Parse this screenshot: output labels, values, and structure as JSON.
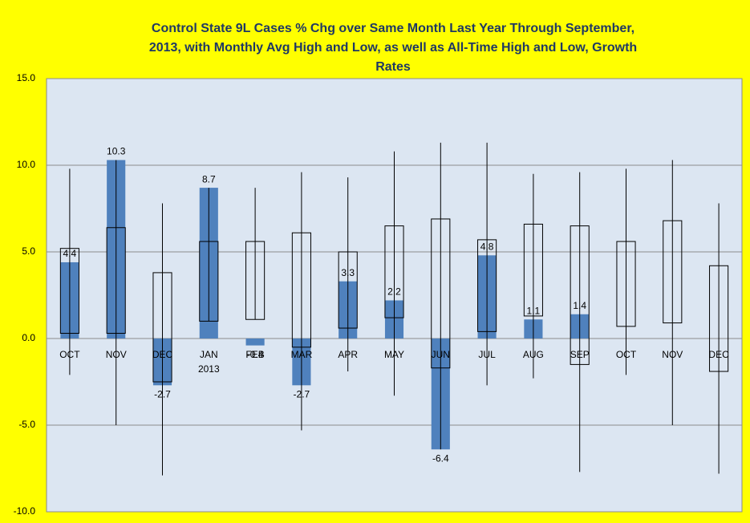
{
  "chart_data": {
    "type": "bar",
    "title": [
      "Control State 9L Cases % Chg over Same Month Last Year Through September,",
      "2013, with Monthly Avg High and Low, as well as All-Time High and Low,  Growth",
      "Rates"
    ],
    "categories": [
      "OCT",
      "NOV",
      "DEC",
      "JAN",
      "FEB",
      "MAR",
      "APR",
      "MAY",
      "JUN",
      "JUL",
      "AUG",
      "SEP",
      "OCT",
      "NOV",
      "DEC"
    ],
    "category_sublabels": [
      null,
      null,
      null,
      "2013",
      null,
      null,
      null,
      null,
      null,
      null,
      null,
      null,
      null,
      null,
      null
    ],
    "values": [
      4.4,
      10.3,
      -2.7,
      8.7,
      -0.4,
      -2.7,
      3.3,
      2.2,
      -6.4,
      4.8,
      1.1,
      1.4,
      null,
      null,
      null
    ],
    "avg_high": [
      5.2,
      6.4,
      3.8,
      5.6,
      5.6,
      6.1,
      5.0,
      6.5,
      6.9,
      5.7,
      6.6,
      6.5,
      5.6,
      6.8,
      4.2
    ],
    "avg_low": [
      0.3,
      0.3,
      -2.5,
      1.0,
      1.1,
      -0.5,
      0.6,
      1.2,
      -1.7,
      0.4,
      1.3,
      -1.5,
      0.7,
      0.9,
      -1.9
    ],
    "all_time_high": [
      9.8,
      10.3,
      7.8,
      8.7,
      8.7,
      9.6,
      9.3,
      10.8,
      11.3,
      11.3,
      9.5,
      9.6,
      9.8,
      10.3,
      7.8
    ],
    "all_time_low": [
      -2.1,
      -5.0,
      -7.9,
      1.0,
      1.1,
      -5.3,
      -1.9,
      -3.3,
      -6.4,
      -2.7,
      -2.3,
      -7.7,
      -2.1,
      -5.0,
      -7.8
    ],
    "color": "#4f81bd",
    "ylim": [
      -10,
      15
    ],
    "yticks": [
      {
        "value": -10,
        "label": "-10.0"
      },
      {
        "value": -5,
        "label": "-5.0"
      },
      {
        "value": 0,
        "label": "0.0"
      },
      {
        "value": 5,
        "label": "5.0"
      },
      {
        "value": 10,
        "label": "10.0"
      },
      {
        "value": 15,
        "label": "15.0"
      }
    ],
    "grid": true
  }
}
